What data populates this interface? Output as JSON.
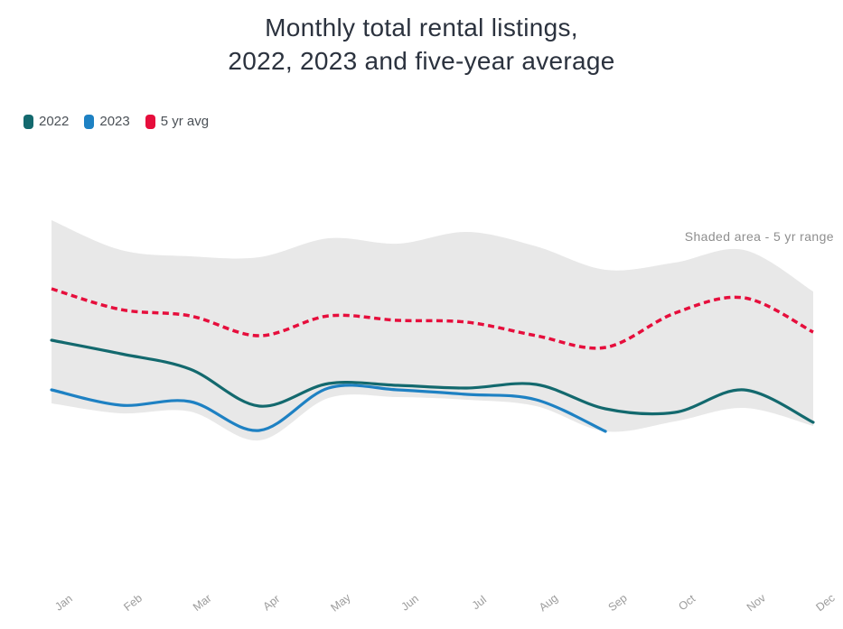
{
  "title": {
    "line1": "Monthly total rental listings,",
    "line2": "2022, 2023 and five-year average"
  },
  "legend": [
    {
      "label": "2022",
      "color": "#13696e"
    },
    {
      "label": "2023",
      "color": "#1e81c3"
    },
    {
      "label": "5 yr avg",
      "color": "#e60e3c"
    }
  ],
  "annotation": "Shaded area - 5 yr range",
  "colors": {
    "band": "#e8e8e8",
    "title_text": "#2b323e",
    "legend_text": "#4b5157",
    "annotation_text": "#8e8e8e",
    "axis_label_text": "#9c9c9c"
  },
  "chart_data": {
    "type": "line",
    "title": "Monthly total rental listings, 2022, 2023 and five-year average",
    "x_categories": [
      "Jan",
      "Feb",
      "Mar",
      "Apr",
      "May",
      "Jun",
      "Jul",
      "Aug",
      "Sep",
      "Oct",
      "Nov",
      "Dec"
    ],
    "xlabel": "",
    "ylabel": "",
    "y_axis_visible": false,
    "value_scale": "relative listings index (chart shows no numeric y-axis); estimated from plot geometry",
    "grid": false,
    "legend_position": "top-left",
    "series": [
      {
        "name": "2022",
        "color": "#13696e",
        "style": "solid",
        "values": [
          49.2,
          43.2,
          36.4,
          20.0,
          30.0,
          29.2,
          28.0,
          29.6,
          18.8,
          17.2,
          27.2,
          12.8
        ]
      },
      {
        "name": "2023",
        "color": "#1e81c3",
        "style": "solid",
        "note": "data ends in September",
        "values": [
          27.2,
          20.4,
          22.0,
          9.2,
          28.0,
          27.2,
          25.2,
          22.8,
          8.8
        ]
      },
      {
        "name": "5 yr avg",
        "color": "#e60e3c",
        "style": "dashed",
        "values": [
          72.0,
          62.8,
          60.0,
          51.2,
          60.0,
          58.0,
          57.2,
          51.2,
          46.0,
          61.2,
          68.0,
          52.8
        ]
      }
    ],
    "band": {
      "name": "5 yr range",
      "label": "Shaded area - 5 yr range",
      "color": "#e8e8e8",
      "upper": [
        102.4,
        89.2,
        86.4,
        86.0,
        94.4,
        92.0,
        97.2,
        90.8,
        80.4,
        83.6,
        89.2,
        70.8
      ],
      "lower": [
        21.2,
        16.8,
        17.6,
        4.8,
        23.6,
        24.0,
        22.8,
        20.0,
        8.8,
        13.2,
        19.2,
        11.2
      ]
    }
  }
}
